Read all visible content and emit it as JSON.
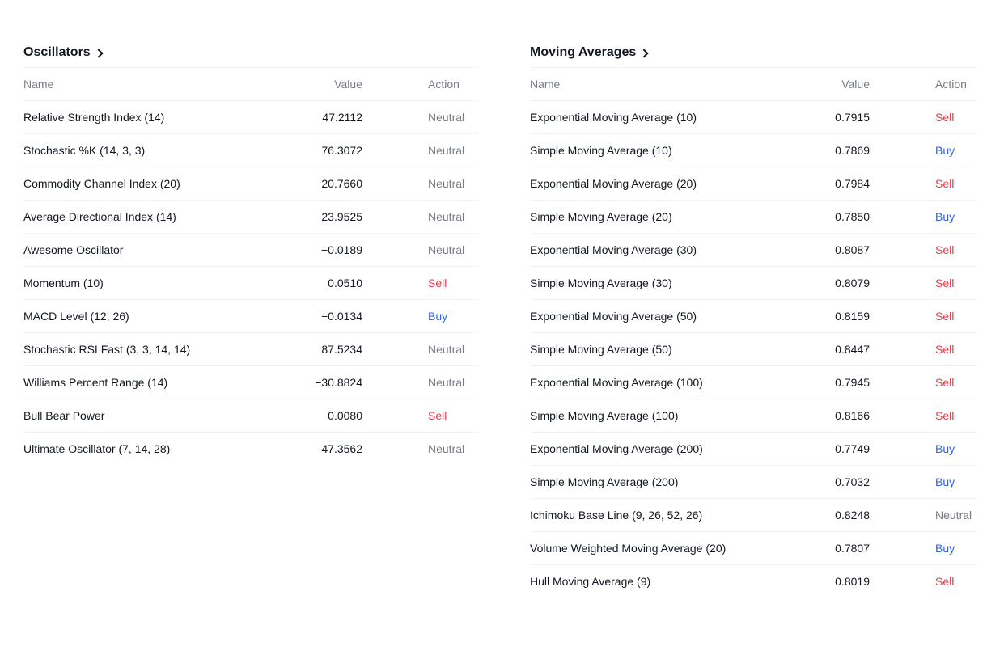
{
  "oscillators": {
    "title": "Oscillators",
    "columns": {
      "name": "Name",
      "value": "Value",
      "action": "Action"
    },
    "rows": [
      {
        "name": "Relative Strength Index (14)",
        "value": "47.2112",
        "action": "Neutral"
      },
      {
        "name": "Stochastic %K (14, 3, 3)",
        "value": "76.3072",
        "action": "Neutral"
      },
      {
        "name": "Commodity Channel Index (20)",
        "value": "20.7660",
        "action": "Neutral"
      },
      {
        "name": "Average Directional Index (14)",
        "value": "23.9525",
        "action": "Neutral"
      },
      {
        "name": "Awesome Oscillator",
        "value": "−0.0189",
        "action": "Neutral"
      },
      {
        "name": "Momentum (10)",
        "value": "0.0510",
        "action": "Sell"
      },
      {
        "name": "MACD Level (12, 26)",
        "value": "−0.0134",
        "action": "Buy"
      },
      {
        "name": "Stochastic RSI Fast (3, 3, 14, 14)",
        "value": "87.5234",
        "action": "Neutral"
      },
      {
        "name": "Williams Percent Range (14)",
        "value": "−30.8824",
        "action": "Neutral"
      },
      {
        "name": "Bull Bear Power",
        "value": "0.0080",
        "action": "Sell"
      },
      {
        "name": "Ultimate Oscillator (7, 14, 28)",
        "value": "47.3562",
        "action": "Neutral"
      }
    ]
  },
  "moving_averages": {
    "title": "Moving Averages",
    "columns": {
      "name": "Name",
      "value": "Value",
      "action": "Action"
    },
    "rows": [
      {
        "name": "Exponential Moving Average (10)",
        "value": "0.7915",
        "action": "Sell"
      },
      {
        "name": "Simple Moving Average (10)",
        "value": "0.7869",
        "action": "Buy"
      },
      {
        "name": "Exponential Moving Average (20)",
        "value": "0.7984",
        "action": "Sell"
      },
      {
        "name": "Simple Moving Average (20)",
        "value": "0.7850",
        "action": "Buy"
      },
      {
        "name": "Exponential Moving Average (30)",
        "value": "0.8087",
        "action": "Sell"
      },
      {
        "name": "Simple Moving Average (30)",
        "value": "0.8079",
        "action": "Sell"
      },
      {
        "name": "Exponential Moving Average (50)",
        "value": "0.8159",
        "action": "Sell"
      },
      {
        "name": "Simple Moving Average (50)",
        "value": "0.8447",
        "action": "Sell"
      },
      {
        "name": "Exponential Moving Average (100)",
        "value": "0.7945",
        "action": "Sell"
      },
      {
        "name": "Simple Moving Average (100)",
        "value": "0.8166",
        "action": "Sell"
      },
      {
        "name": "Exponential Moving Average (200)",
        "value": "0.7749",
        "action": "Buy"
      },
      {
        "name": "Simple Moving Average (200)",
        "value": "0.7032",
        "action": "Buy"
      },
      {
        "name": "Ichimoku Base Line (9, 26, 52, 26)",
        "value": "0.8248",
        "action": "Neutral"
      },
      {
        "name": "Volume Weighted Moving Average (20)",
        "value": "0.7807",
        "action": "Buy"
      },
      {
        "name": "Hull Moving Average (9)",
        "value": "0.8019",
        "action": "Sell"
      }
    ]
  },
  "colors": {
    "sell": "#f23645",
    "buy": "#2962ff",
    "neutral": "#787b86",
    "text": "#131722",
    "divider": "#f0f3fa"
  },
  "icons": {
    "header_chevron": "chevron-right-icon"
  }
}
